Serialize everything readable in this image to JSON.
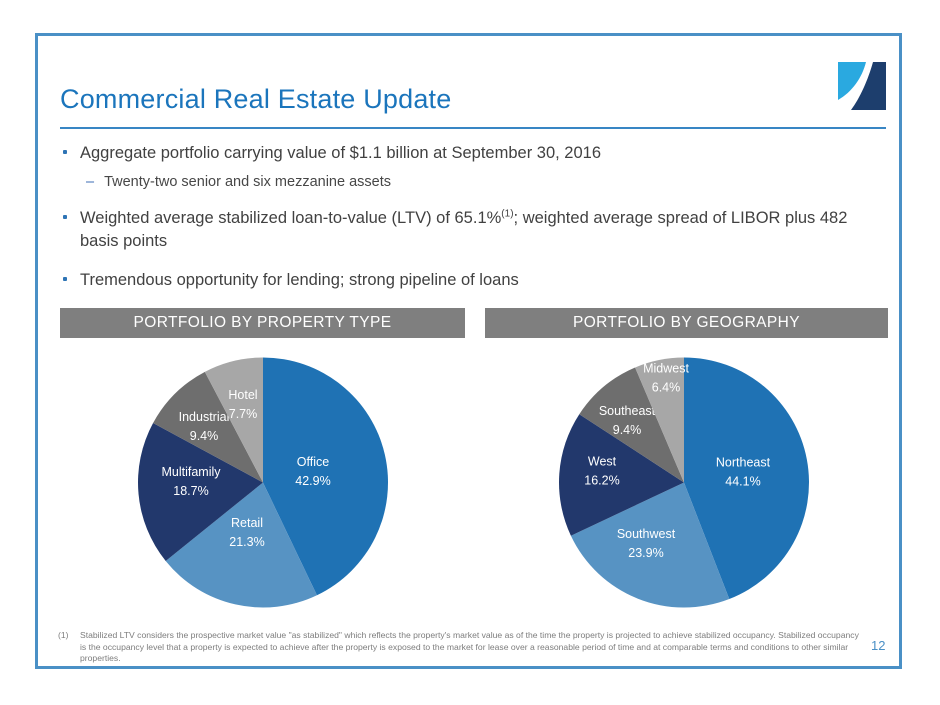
{
  "slide": {
    "title": "Commercial Real Estate Update",
    "title_color": "#1b75bc",
    "border_color": "#4a90c6",
    "section_header_bg": "#7f7f7f",
    "page_number": "12",
    "logo": {
      "name": "company-logo",
      "light_blue": "#2aa9e0",
      "navy": "#1d3e6d",
      "swoosh": "#ffffff"
    }
  },
  "bullets": {
    "b1": "Aggregate portfolio carrying value of $1.1 billion at September 30, 2016",
    "b1_sub_dash": "–",
    "b1_sub": "Twenty-two senior and six mezzanine assets",
    "b2_part1": "Weighted average stabilized loan-to-value (LTV) of 65.1%",
    "b2_sup": "(1)",
    "b2_part2": "; weighted average spread of LIBOR plus 482 basis points",
    "b3": "Tremendous opportunity for lending; strong pipeline of loans"
  },
  "footnote": {
    "marker": "(1)",
    "text": "Stabilized LTV considers the prospective market value \"as stabilized\" which reflects the property's market value as of the time the property is projected to achieve stabilized occupancy. Stabilized occupancy is the occupancy level that a property is expected to achieve after the property is exposed to the market for lease over a reasonable period of time and at comparable terms and conditions to other similar properties."
  },
  "chart_data": [
    {
      "type": "pie",
      "title": "PORTFOLIO BY PROPERTY TYPE",
      "labels": [
        "Office",
        "Retail",
        "Multifamily",
        "Industrial",
        "Hotel"
      ],
      "values": [
        42.9,
        21.3,
        18.7,
        9.4,
        7.7
      ],
      "value_labels": [
        "42.9%",
        "21.3%",
        "18.7%",
        "9.4%",
        "7.7%"
      ],
      "colors": [
        "#1f72b4",
        "#5793c3",
        "#22386c",
        "#6e6e6e",
        "#a7a7a7"
      ],
      "label_color": "#ffffff",
      "start_angle_deg": 0,
      "direction": "clockwise",
      "legend": "none",
      "label_positions": [
        [
          0.4,
          -0.092
        ],
        [
          -0.128,
          0.396
        ],
        [
          -0.576,
          -0.012
        ],
        [
          -0.472,
          -0.452
        ],
        [
          -0.16,
          -0.628
        ]
      ]
    },
    {
      "type": "pie",
      "title": "PORTFOLIO BY GEOGRAPHY",
      "labels": [
        "Northeast",
        "Southwest",
        "West",
        "Southeast",
        "Midwest"
      ],
      "values": [
        44.1,
        23.9,
        16.2,
        9.4,
        6.4
      ],
      "value_labels": [
        "44.1%",
        "23.9%",
        "16.2%",
        "9.4%",
        "6.4%"
      ],
      "colors": [
        "#1f72b4",
        "#5793c3",
        "#22386c",
        "#6e6e6e",
        "#a7a7a7"
      ],
      "label_color": "#ffffff",
      "start_angle_deg": 0,
      "direction": "clockwise",
      "legend": "none",
      "label_positions": [
        [
          0.472,
          -0.088
        ],
        [
          -0.304,
          0.484
        ],
        [
          -0.656,
          -0.096
        ],
        [
          -0.456,
          -0.5
        ],
        [
          -0.144,
          -0.84
        ]
      ]
    }
  ]
}
